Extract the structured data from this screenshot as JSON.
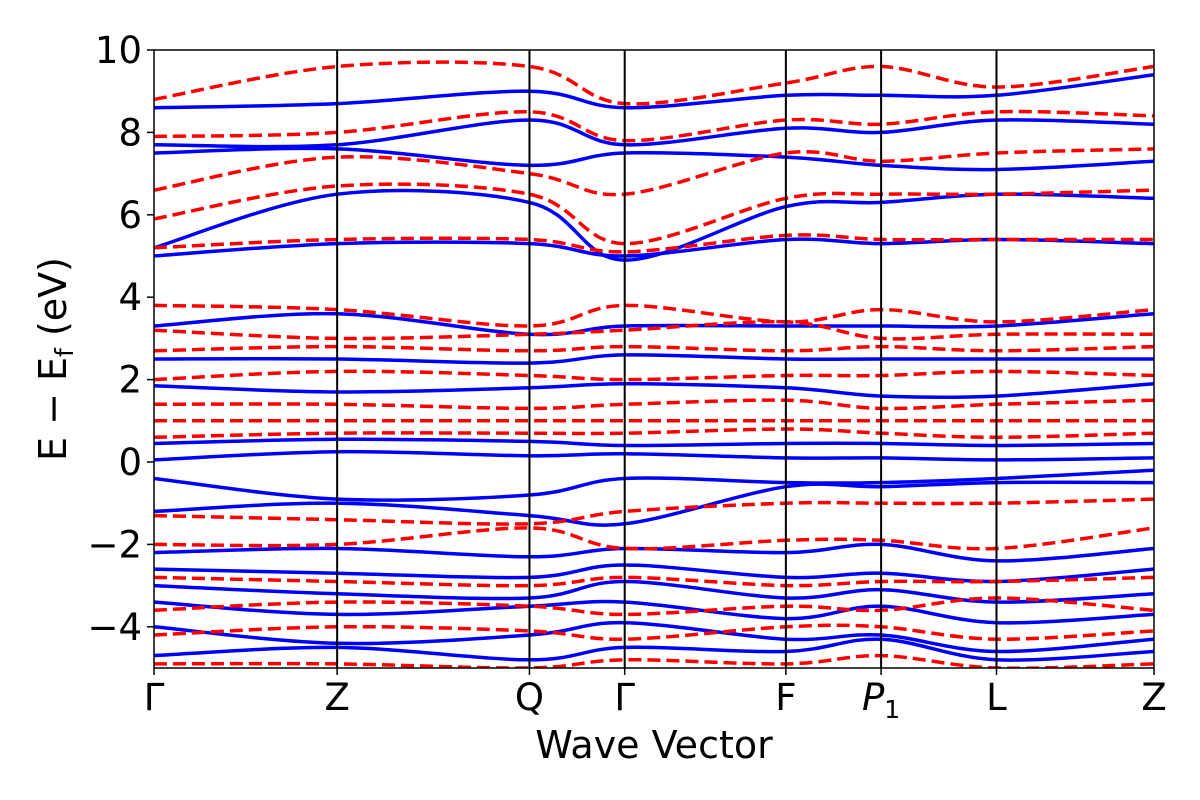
{
  "chart_data": {
    "type": "line",
    "xlabel": "Wave Vector",
    "ylabel": "E − E",
    "ylabel_sub": "f",
    "ylabel_unit": " (eV)",
    "ylim": [
      -5,
      10
    ],
    "yticks": [
      -4,
      -2,
      0,
      2,
      4,
      6,
      8,
      10
    ],
    "ytick_labels": [
      "−4",
      "−2",
      "0",
      "2",
      "4",
      "6",
      "8",
      "10"
    ],
    "grid": false,
    "legend": "none",
    "kpath_positions": [
      0,
      1.0,
      2.05,
      2.57,
      3.45,
      3.97,
      4.6,
      5.46
    ],
    "high_symmetry_points": [
      {
        "label": "Γ",
        "x": 0
      },
      {
        "label": "Z",
        "x": 1.0
      },
      {
        "label": "Q",
        "x": 2.05
      },
      {
        "label": "Γ",
        "x": 2.57
      },
      {
        "label": "F",
        "x": 3.45
      },
      {
        "label": "P",
        "sub": "1",
        "x": 3.97
      },
      {
        "label": "L",
        "x": 4.6
      },
      {
        "label": "Z",
        "x": 5.46
      }
    ],
    "series": [
      {
        "style": "solid",
        "color": "#0000ff",
        "bands": [
          [
            -4.7,
            -4.5,
            -4.8,
            -4.5,
            -4.6,
            -4.3,
            -4.8,
            -4.6
          ],
          [
            -4.0,
            -4.4,
            -4.2,
            -3.9,
            -4.3,
            -4.2,
            -4.6,
            -4.3
          ],
          [
            -3.4,
            -3.7,
            -3.5,
            -3.4,
            -3.8,
            -3.5,
            -3.9,
            -3.7
          ],
          [
            -3.0,
            -3.2,
            -3.3,
            -2.9,
            -3.3,
            -3.1,
            -3.4,
            -3.2
          ],
          [
            -2.6,
            -2.7,
            -2.8,
            -2.5,
            -2.8,
            -2.7,
            -2.9,
            -2.6
          ],
          [
            -2.2,
            -2.1,
            -2.3,
            -2.1,
            -2.2,
            -2.0,
            -2.4,
            -2.1
          ],
          [
            -1.2,
            -1.0,
            -1.3,
            -1.5,
            -0.6,
            -0.6,
            -0.5,
            -0.5
          ],
          [
            -0.4,
            -0.9,
            -0.8,
            -0.4,
            -0.5,
            -0.5,
            -0.4,
            -0.2
          ],
          [
            0.05,
            0.25,
            0.15,
            0.2,
            0.1,
            0.1,
            0.05,
            0.1
          ],
          [
            0.45,
            0.55,
            0.5,
            0.4,
            0.45,
            0.45,
            0.4,
            0.45
          ],
          [
            1.85,
            1.7,
            1.8,
            1.9,
            1.8,
            1.6,
            1.6,
            1.9
          ],
          [
            2.5,
            2.5,
            2.4,
            2.6,
            2.5,
            2.5,
            2.5,
            2.5
          ],
          [
            3.3,
            3.6,
            3.1,
            3.3,
            3.3,
            3.3,
            3.3,
            3.6
          ],
          [
            5.0,
            5.3,
            5.3,
            5.0,
            5.4,
            5.3,
            5.4,
            5.3
          ],
          [
            5.2,
            6.5,
            6.3,
            4.9,
            6.2,
            6.3,
            6.5,
            6.4
          ],
          [
            7.5,
            7.6,
            7.2,
            7.5,
            7.4,
            7.2,
            7.1,
            7.3
          ],
          [
            7.7,
            7.7,
            8.3,
            7.7,
            8.1,
            8.0,
            8.3,
            8.2
          ],
          [
            8.6,
            8.7,
            9.0,
            8.6,
            8.9,
            8.9,
            8.9,
            9.4
          ]
        ]
      },
      {
        "style": "dashed",
        "color": "#ff0000",
        "bands": [
          [
            -4.9,
            -4.9,
            -5.0,
            -4.8,
            -4.9,
            -4.7,
            -5.0,
            -4.9
          ],
          [
            -4.2,
            -4.0,
            -4.1,
            -4.3,
            -4.0,
            -4.0,
            -4.3,
            -4.1
          ],
          [
            -3.6,
            -3.4,
            -3.5,
            -3.7,
            -3.5,
            -3.6,
            -3.3,
            -3.6
          ],
          [
            -2.8,
            -2.9,
            -3.0,
            -2.8,
            -3.0,
            -2.9,
            -2.9,
            -2.8
          ],
          [
            -2.0,
            -2.0,
            -1.6,
            -2.1,
            -1.9,
            -1.9,
            -2.1,
            -1.6
          ],
          [
            -1.3,
            -1.4,
            -1.5,
            -1.2,
            -1.0,
            -1.0,
            -1.0,
            -0.9
          ],
          [
            0.6,
            0.7,
            0.7,
            0.7,
            0.8,
            0.7,
            0.6,
            0.7
          ],
          [
            1.0,
            1.0,
            1.0,
            1.0,
            1.0,
            1.0,
            1.0,
            1.0
          ],
          [
            1.4,
            1.4,
            1.3,
            1.4,
            1.5,
            1.3,
            1.4,
            1.5
          ],
          [
            2.0,
            2.2,
            2.1,
            2.0,
            2.1,
            2.1,
            2.2,
            2.1
          ],
          [
            2.7,
            2.8,
            2.7,
            2.8,
            2.7,
            2.8,
            2.7,
            2.8
          ],
          [
            3.2,
            3.0,
            3.1,
            3.2,
            3.4,
            3.0,
            3.1,
            3.1
          ],
          [
            3.8,
            3.7,
            3.3,
            3.8,
            3.4,
            3.7,
            3.4,
            3.7
          ],
          [
            5.2,
            5.4,
            5.4,
            5.1,
            5.5,
            5.4,
            5.4,
            5.4
          ],
          [
            5.9,
            6.7,
            6.5,
            5.3,
            6.4,
            6.5,
            6.5,
            6.6
          ],
          [
            6.6,
            7.4,
            7.0,
            6.5,
            7.5,
            7.3,
            7.5,
            7.6
          ],
          [
            7.9,
            8.0,
            8.5,
            7.8,
            8.3,
            8.2,
            8.5,
            8.4
          ],
          [
            8.8,
            9.6,
            9.6,
            8.7,
            9.2,
            9.6,
            9.1,
            9.6
          ]
        ]
      }
    ]
  }
}
